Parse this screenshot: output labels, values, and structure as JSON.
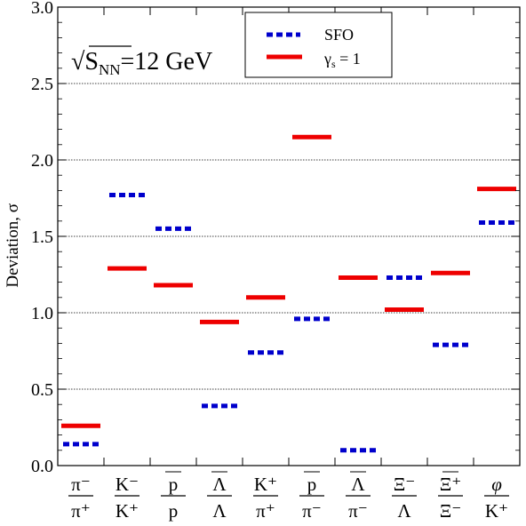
{
  "chart_data": {
    "type": "scatter",
    "ylabel": "Deviation, σ",
    "ylim": [
      0.0,
      3.0
    ],
    "yticks": [
      0.0,
      0.5,
      1.0,
      1.5,
      2.0,
      2.5,
      3.0
    ],
    "ytick_labels": [
      "0.0",
      "0.5",
      "1.0",
      "1.5",
      "2.0",
      "2.5",
      "3.0"
    ],
    "grid_y": [
      0.5,
      1.0,
      1.5,
      2.0,
      2.5
    ],
    "annotation": {
      "sqrt": "√",
      "s": "S",
      "sub": "NN",
      "rest": "=12 GeV"
    },
    "categories": [
      {
        "num": "π⁻",
        "den": "π⁺",
        "num_bar": false,
        "den_bar": false,
        "italic": false
      },
      {
        "num": "K⁻",
        "den": "K⁺",
        "num_bar": false,
        "den_bar": false,
        "italic": false
      },
      {
        "num": "p",
        "den": "p",
        "num_bar": true,
        "den_bar": false,
        "italic": false
      },
      {
        "num": "Λ",
        "den": "Λ",
        "num_bar": true,
        "den_bar": false,
        "italic": false
      },
      {
        "num": "K⁺",
        "den": "π⁺",
        "num_bar": false,
        "den_bar": false,
        "italic": false
      },
      {
        "num": "p",
        "den": "π⁻",
        "num_bar": true,
        "den_bar": false,
        "italic": false
      },
      {
        "num": "Λ",
        "den": "π⁻",
        "num_bar": true,
        "den_bar": false,
        "italic": false
      },
      {
        "num": "Ξ⁻",
        "den": "Λ",
        "num_bar": false,
        "den_bar": false,
        "italic": false
      },
      {
        "num": "Ξ⁺",
        "den": "Ξ⁻",
        "num_bar": true,
        "den_bar": false,
        "italic": false
      },
      {
        "num": "φ",
        "den": "K⁺",
        "num_bar": false,
        "den_bar": false,
        "italic": true
      }
    ],
    "series": [
      {
        "name": "SFO",
        "color": "#0000cc",
        "style": "dotted",
        "values": [
          0.14,
          1.77,
          1.55,
          0.39,
          0.74,
          0.96,
          0.1,
          1.23,
          0.79,
          1.59
        ]
      },
      {
        "name": "γ_s = 1",
        "legend_main": "γ",
        "legend_sub": "s",
        "legend_rest": " = 1",
        "color": "#ee0000",
        "style": "solid",
        "values": [
          0.26,
          1.29,
          1.18,
          0.94,
          1.1,
          2.15,
          1.23,
          1.02,
          1.26,
          1.81
        ]
      }
    ],
    "legend_position": "top-center"
  }
}
